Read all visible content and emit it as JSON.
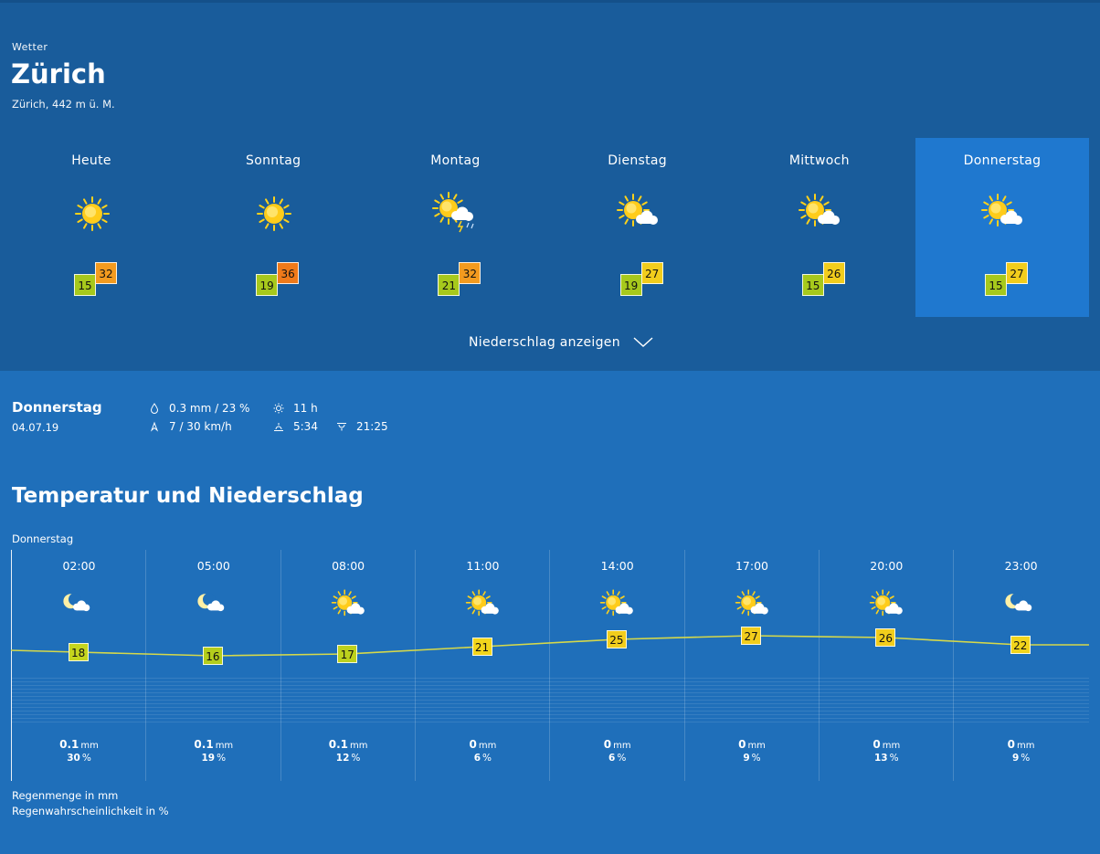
{
  "header": {
    "eyebrow": "Wetter",
    "city": "Zürich",
    "altitude": "Zürich, 442 m ü. M."
  },
  "days": [
    {
      "name": "Heute",
      "icon": "sun-icon",
      "min": "15",
      "max": "32",
      "max_color": "#f39b1f",
      "selected": false
    },
    {
      "name": "Sonntag",
      "icon": "sun-icon",
      "min": "19",
      "max": "36",
      "max_color": "#ef7a1a",
      "selected": false
    },
    {
      "name": "Montag",
      "icon": "sun-cloud-thunder-icon",
      "min": "21",
      "max": "32",
      "max_color": "#f39b1f",
      "selected": false
    },
    {
      "name": "Dienstag",
      "icon": "sun-cloud-icon",
      "min": "19",
      "max": "27",
      "max_color": "#f2cd1c",
      "selected": false
    },
    {
      "name": "Mittwoch",
      "icon": "sun-cloud-icon",
      "min": "15",
      "max": "26",
      "max_color": "#f2cd1c",
      "selected": false
    },
    {
      "name": "Donnerstag",
      "icon": "sun-cloud-icon",
      "min": "15",
      "max": "27",
      "max_color": "#f2cd1c",
      "selected": true
    }
  ],
  "precip_toggle": "Niederschlag anzeigen",
  "detail": {
    "day": "Donnerstag",
    "date": "04.07.19",
    "rain": "0.3 mm / 23 %",
    "wind": "7 / 30 km/h",
    "sunshine": "11 h",
    "sunrise": "5:34",
    "sunset": "21:25"
  },
  "section_title": "Temperatur und Niederschlag",
  "chart_day": "Donnerstag",
  "chart_data": {
    "type": "line",
    "x": [
      "02:00",
      "05:00",
      "08:00",
      "11:00",
      "14:00",
      "17:00",
      "20:00",
      "23:00"
    ],
    "series": [
      {
        "values": [
          18,
          16,
          17,
          21,
          25,
          27,
          26,
          22
        ]
      }
    ],
    "precip_mm": [
      "0.1",
      "0.1",
      "0.1",
      "0",
      "0",
      "0",
      "0",
      "0"
    ],
    "precip_prob": [
      "30",
      "19",
      "12",
      "6",
      "6",
      "9",
      "13",
      "9"
    ],
    "icons": [
      "moon-cloud-icon",
      "moon-cloud-icon",
      "sun-cloud-icon",
      "sun-cloud-icon",
      "sun-cloud-icon",
      "sun-cloud-icon",
      "sun-cloud-icon",
      "moon-cloud-icon"
    ],
    "temp_colors": [
      "#c5d51e",
      "#b4cd1c",
      "#bcd11d",
      "#f2d51c",
      "#f2cd1c",
      "#f2cd1c",
      "#f2cd1c",
      "#f2d51c"
    ],
    "line_color": "#d6d94a"
  },
  "units": {
    "mm": "mm",
    "pct": "%"
  },
  "legend": {
    "amount": "Regenmenge in mm",
    "probability": "Regenwahrscheinlichkeit in %"
  }
}
